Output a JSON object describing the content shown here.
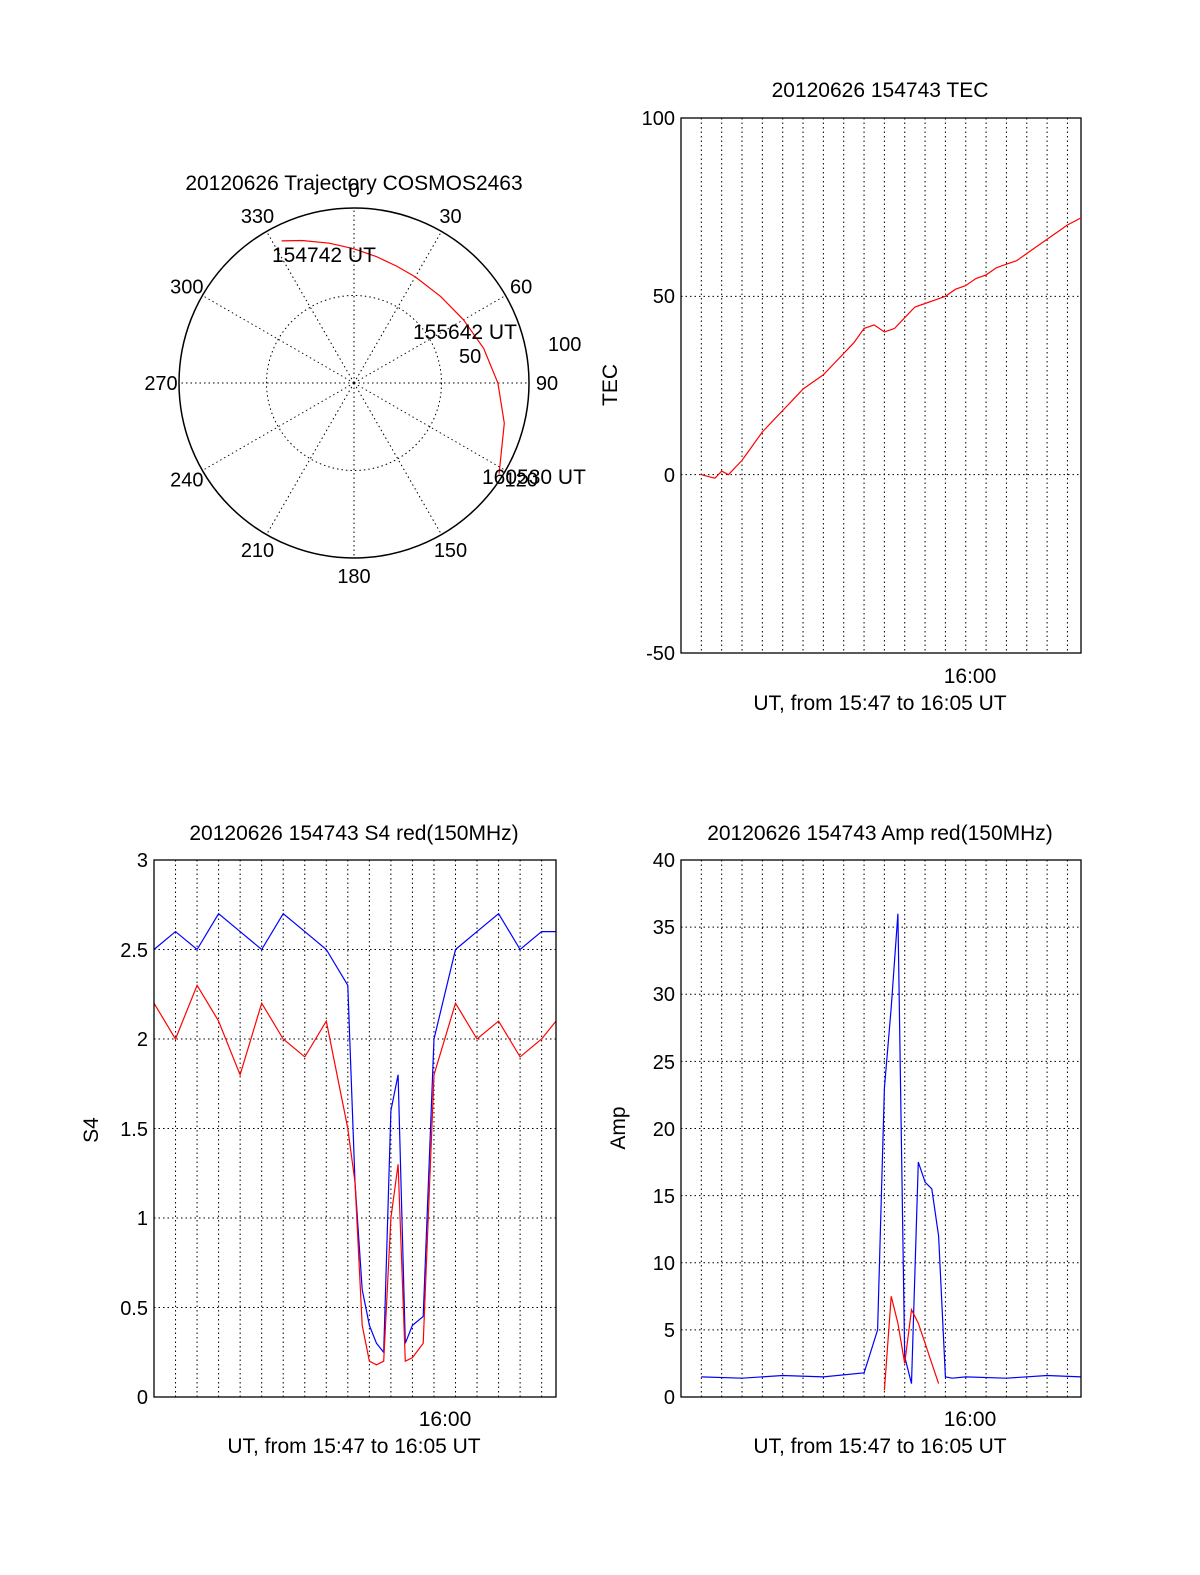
{
  "colors": {
    "red": "#ff0000",
    "blue": "#0000ff",
    "axis": "#000000"
  },
  "chart_data": [
    {
      "id": "polar",
      "type": "polar-trajectory",
      "title": "20120626 Trajectory COSMOS2463",
      "azimuth_labels": [
        "0",
        "30",
        "60",
        "90",
        "120",
        "150",
        "180",
        "210",
        "240",
        "270",
        "300",
        "330"
      ],
      "ring_labels": [
        "50",
        "100"
      ],
      "elevation_max": 90,
      "points": [
        {
          "time_label": "154742 UT",
          "azimuth": 333,
          "elevation": 8
        },
        {
          "azimuth": 340,
          "elevation": 12
        },
        {
          "azimuth": 350,
          "elevation": 17
        },
        {
          "azimuth": 0,
          "elevation": 21
        },
        {
          "azimuth": 10,
          "elevation": 24
        },
        {
          "azimuth": 20,
          "elevation": 26
        },
        {
          "azimuth": 30,
          "elevation": 27
        },
        {
          "azimuth": 45,
          "elevation": 27
        },
        {
          "time_label": "155642 UT",
          "azimuth": 60,
          "elevation": 25
        },
        {
          "azimuth": 75,
          "elevation": 21
        },
        {
          "azimuth": 90,
          "elevation": 16
        },
        {
          "azimuth": 105,
          "elevation": 10
        },
        {
          "time_label": "160530 UT",
          "azimuth": 122,
          "elevation": 2
        }
      ]
    },
    {
      "id": "tec",
      "type": "line",
      "title": "20120626 154743 TEC",
      "xlabel": "UT, from 15:47 to 16:05 UT",
      "ylabel": "TEC",
      "x_tick_labels": [
        "16:00"
      ],
      "y_ticks": [
        "-50",
        "0",
        "50",
        "100"
      ],
      "xlim": [
        "15:46:00",
        "16:05:40"
      ],
      "ylim": [
        -50,
        100
      ],
      "series": [
        {
          "color": "#ff0000",
          "x": [
            "15:47:00",
            "15:47:40",
            "15:48:00",
            "15:48:20",
            "15:48:40",
            "15:49:00",
            "15:49:30",
            "15:50:00",
            "15:50:30",
            "15:51:00",
            "15:51:30",
            "15:52:00",
            "15:52:30",
            "15:53:00",
            "15:53:30",
            "15:54:00",
            "15:54:30",
            "15:55:00",
            "15:55:30",
            "15:56:00",
            "15:56:30",
            "15:57:00",
            "15:57:30",
            "15:58:00",
            "15:58:30",
            "15:59:00",
            "15:59:30",
            "16:00:00",
            "16:00:30",
            "16:01:00",
            "16:01:30",
            "16:02:00",
            "16:02:30",
            "16:03:00",
            "16:03:30",
            "16:04:00",
            "16:04:30",
            "16:05:00",
            "16:05:40"
          ],
          "y": [
            0,
            -1,
            1,
            0,
            2,
            4,
            8,
            12,
            15,
            18,
            21,
            24,
            26,
            28,
            31,
            34,
            37,
            41,
            42,
            40,
            41,
            44,
            47,
            48,
            49,
            50,
            52,
            53,
            55,
            56,
            58,
            59,
            60,
            62,
            64,
            66,
            68,
            70,
            72
          ]
        }
      ]
    },
    {
      "id": "s4",
      "type": "line",
      "title": "20120626 154743 S4 red(150MHz)",
      "xlabel": "UT, from 15:47 to 16:05 UT",
      "ylabel": "S4",
      "x_tick_labels": [
        "16:00"
      ],
      "y_ticks": [
        "0",
        "0.5",
        "1",
        "1.5",
        "2",
        "2.5",
        "3"
      ],
      "xlim": [
        "15:47:00",
        "16:05:40"
      ],
      "ylim": [
        0,
        3
      ],
      "series": [
        {
          "color": "#0000ff",
          "x": [
            "15:47:00",
            "15:48:00",
            "15:49:00",
            "15:50:00",
            "15:51:00",
            "15:52:00",
            "15:53:00",
            "15:54:00",
            "15:55:00",
            "15:56:00",
            "15:56:20",
            "15:56:40",
            "15:57:00",
            "15:57:20",
            "15:57:40",
            "15:58:00",
            "15:58:20",
            "15:58:40",
            "15:59:00",
            "15:59:30",
            "16:00:00",
            "16:01:00",
            "16:02:00",
            "16:03:00",
            "16:04:00",
            "16:05:00",
            "16:05:40"
          ],
          "y": [
            2.5,
            2.6,
            2.5,
            2.7,
            2.6,
            2.5,
            2.7,
            2.6,
            2.5,
            2.3,
            1.2,
            0.6,
            0.4,
            0.3,
            0.25,
            1.6,
            1.8,
            0.3,
            0.4,
            0.45,
            2.0,
            2.5,
            2.6,
            2.7,
            2.5,
            2.6,
            2.6
          ]
        },
        {
          "color": "#ff0000",
          "x": [
            "15:47:00",
            "15:48:00",
            "15:49:00",
            "15:50:00",
            "15:51:00",
            "15:52:00",
            "15:53:00",
            "15:54:00",
            "15:55:00",
            "15:56:00",
            "15:56:20",
            "15:56:40",
            "15:57:00",
            "15:57:20",
            "15:57:40",
            "15:58:00",
            "15:58:20",
            "15:58:40",
            "15:59:00",
            "15:59:30",
            "16:00:00",
            "16:01:00",
            "16:02:00",
            "16:03:00",
            "16:04:00",
            "16:05:00",
            "16:05:40"
          ],
          "y": [
            2.2,
            2.0,
            2.3,
            2.1,
            1.8,
            2.2,
            2.0,
            1.9,
            2.1,
            1.5,
            1.2,
            0.4,
            0.2,
            0.18,
            0.2,
            1.0,
            1.3,
            0.2,
            0.22,
            0.3,
            1.8,
            2.2,
            2.0,
            2.1,
            1.9,
            2.0,
            2.1
          ]
        }
      ]
    },
    {
      "id": "amp",
      "type": "line",
      "title": "20120626 154743 Amp red(150MHz)",
      "xlabel": "UT, from 15:47 to 16:05 UT",
      "ylabel": "Amp",
      "x_tick_labels": [
        "16:00"
      ],
      "y_ticks": [
        "0",
        "5",
        "10",
        "15",
        "20",
        "25",
        "30",
        "35",
        "40"
      ],
      "xlim": [
        "15:46:00",
        "16:05:40"
      ],
      "ylim": [
        0,
        40
      ],
      "series": [
        {
          "color": "#0000ff",
          "x": [
            "15:47:00",
            "15:49:00",
            "15:51:00",
            "15:53:00",
            "15:55:00",
            "15:55:40",
            "15:56:00",
            "15:56:20",
            "15:56:40",
            "15:57:00",
            "15:57:20",
            "15:57:40",
            "15:58:00",
            "15:58:20",
            "15:58:40",
            "15:59:00",
            "15:59:20",
            "16:00:00",
            "16:02:00",
            "16:04:00",
            "16:05:40"
          ],
          "y": [
            1.5,
            1.4,
            1.6,
            1.5,
            1.8,
            5.0,
            23.0,
            29.0,
            36.0,
            3.0,
            1.0,
            17.5,
            16.0,
            15.5,
            12.0,
            1.5,
            1.4,
            1.5,
            1.4,
            1.6,
            1.5
          ]
        },
        {
          "color": "#ff0000",
          "x": [
            "15:56:00",
            "15:56:20",
            "15:56:40",
            "15:57:00",
            "15:57:20",
            "15:57:40",
            "15:58:00",
            "15:58:20",
            "15:58:40"
          ],
          "y": [
            0.5,
            7.5,
            5.5,
            2.5,
            6.5,
            5.5,
            4.0,
            2.5,
            1.0
          ]
        }
      ]
    }
  ]
}
